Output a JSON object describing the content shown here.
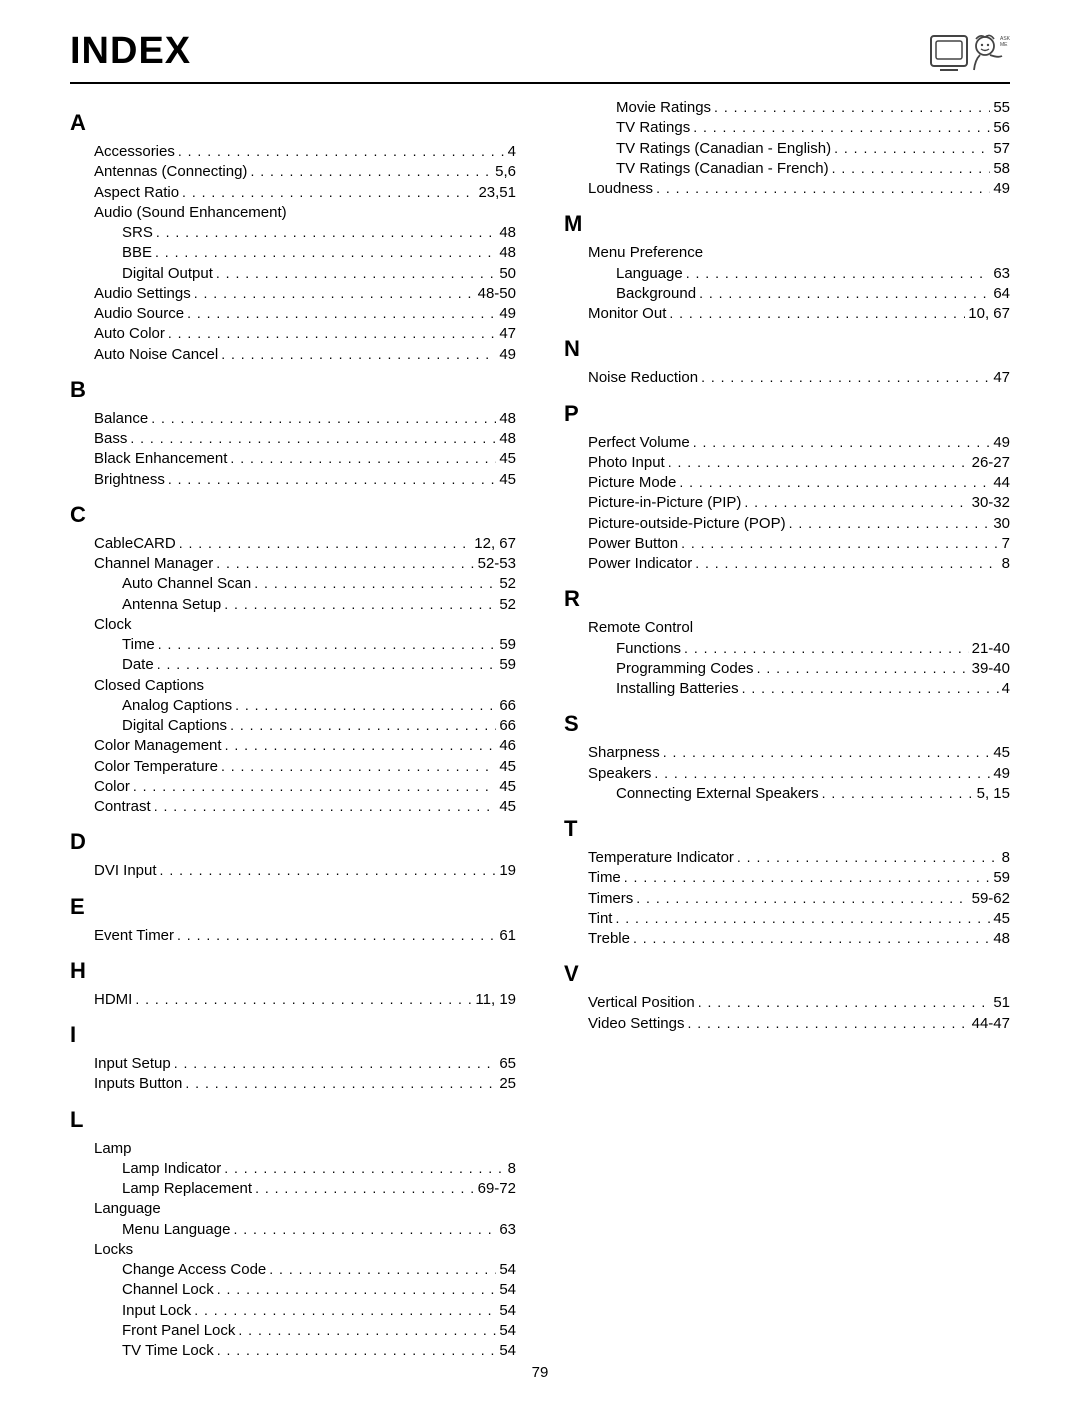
{
  "title": "Index",
  "logo_label": "ASK ME",
  "page_number": "79",
  "columns": [
    {
      "sections": [
        {
          "letter": "A",
          "entries": [
            {
              "label": "Accessories",
              "page": "4"
            },
            {
              "label": "Antennas (Connecting)",
              "page": "5,6"
            },
            {
              "label": "Aspect Ratio",
              "page": "23,51"
            },
            {
              "label": "Audio (Sound Enhancement)"
            },
            {
              "label": "SRS",
              "page": "48",
              "sub": true
            },
            {
              "label": "BBE",
              "page": "48",
              "sub": true
            },
            {
              "label": "Digital Output",
              "page": "50",
              "sub": true
            },
            {
              "label": "Audio Settings",
              "page": "48-50"
            },
            {
              "label": "Audio Source",
              "page": "49"
            },
            {
              "label": "Auto Color",
              "page": "47"
            },
            {
              "label": "Auto Noise Cancel",
              "page": "49"
            }
          ]
        },
        {
          "letter": "B",
          "entries": [
            {
              "label": "Balance",
              "page": "48"
            },
            {
              "label": "Bass",
              "page": "48"
            },
            {
              "label": "Black Enhancement",
              "page": "45"
            },
            {
              "label": "Brightness",
              "page": "45"
            }
          ]
        },
        {
          "letter": "C",
          "entries": [
            {
              "label": "CableCARD",
              "page": "12, 67"
            },
            {
              "label": "Channel Manager",
              "page": "52-53"
            },
            {
              "label": "Auto Channel Scan",
              "page": "52",
              "sub": true
            },
            {
              "label": "Antenna Setup",
              "page": "52",
              "sub": true
            },
            {
              "label": "Clock"
            },
            {
              "label": "Time",
              "page": "59",
              "sub": true
            },
            {
              "label": "Date",
              "page": "59",
              "sub": true
            },
            {
              "label": "Closed Captions"
            },
            {
              "label": "Analog Captions",
              "page": "66",
              "sub": true
            },
            {
              "label": "Digital Captions",
              "page": "66",
              "sub": true
            },
            {
              "label": "Color Management",
              "page": "46"
            },
            {
              "label": "Color Temperature",
              "page": "45"
            },
            {
              "label": "Color",
              "page": "45"
            },
            {
              "label": "Contrast",
              "page": "45"
            }
          ]
        },
        {
          "letter": "D",
          "entries": [
            {
              "label": "DVI Input",
              "page": "19"
            }
          ]
        },
        {
          "letter": "E",
          "entries": [
            {
              "label": "Event Timer",
              "page": "61"
            }
          ]
        },
        {
          "letter": "H",
          "entries": [
            {
              "label": "HDMI",
              "page": "11, 19"
            }
          ]
        },
        {
          "letter": "I",
          "entries": [
            {
              "label": "Input Setup",
              "page": "65"
            },
            {
              "label": "Inputs Button",
              "page": "25"
            }
          ]
        },
        {
          "letter": "L",
          "entries": [
            {
              "label": "Lamp"
            },
            {
              "label": "Lamp Indicator",
              "page": "8",
              "sub": true
            },
            {
              "label": "Lamp Replacement",
              "page": "69-72",
              "sub": true
            },
            {
              "label": "Language"
            },
            {
              "label": "Menu Language",
              "page": "63",
              "sub": true
            },
            {
              "label": "Locks"
            },
            {
              "label": "Change Access Code",
              "page": "54",
              "sub": true
            },
            {
              "label": "Channel Lock",
              "page": "54",
              "sub": true
            },
            {
              "label": "Input Lock",
              "page": "54",
              "sub": true
            },
            {
              "label": "Front Panel Lock",
              "page": "54",
              "sub": true
            },
            {
              "label": "TV Time Lock",
              "page": "54",
              "sub": true
            }
          ]
        }
      ]
    },
    {
      "sections": [
        {
          "letter": "",
          "entries": [
            {
              "label": "Movie Ratings",
              "page": "55",
              "sub": true
            },
            {
              "label": "TV Ratings",
              "page": "56",
              "sub": true
            },
            {
              "label": "TV Ratings (Canadian - English)",
              "page": "57",
              "sub": true
            },
            {
              "label": "TV Ratings (Canadian - French)",
              "page": "58",
              "sub": true
            },
            {
              "label": "Loudness",
              "page": "49"
            }
          ]
        },
        {
          "letter": "M",
          "entries": [
            {
              "label": "Menu Preference"
            },
            {
              "label": "Language",
              "page": "63",
              "sub": true
            },
            {
              "label": "Background",
              "page": "64",
              "sub": true
            },
            {
              "label": "Monitor Out",
              "page": "10, 67"
            }
          ]
        },
        {
          "letter": "N",
          "entries": [
            {
              "label": "Noise Reduction",
              "page": "47"
            }
          ]
        },
        {
          "letter": "P",
          "entries": [
            {
              "label": "Perfect Volume",
              "page": "49"
            },
            {
              "label": "Photo Input",
              "page": "26-27"
            },
            {
              "label": "Picture Mode",
              "page": "44"
            },
            {
              "label": "Picture-in-Picture (PIP)",
              "page": "30-32"
            },
            {
              "label": "Picture-outside-Picture (POP)",
              "page": "30"
            },
            {
              "label": "Power Button",
              "page": "7"
            },
            {
              "label": "Power Indicator",
              "page": "8"
            }
          ]
        },
        {
          "letter": "R",
          "entries": [
            {
              "label": "Remote Control"
            },
            {
              "label": "Functions",
              "page": "21-40",
              "sub": true
            },
            {
              "label": "Programming Codes",
              "page": "39-40",
              "sub": true
            },
            {
              "label": "Installing Batteries",
              "page": "4",
              "sub": true
            }
          ]
        },
        {
          "letter": "S",
          "entries": [
            {
              "label": "Sharpness",
              "page": "45"
            },
            {
              "label": "Speakers",
              "page": "49"
            },
            {
              "label": "Connecting External Speakers",
              "page": "5, 15",
              "sub": true
            }
          ]
        },
        {
          "letter": "T",
          "entries": [
            {
              "label": "Temperature Indicator",
              "page": "8"
            },
            {
              "label": "Time",
              "page": "59"
            },
            {
              "label": "Timers",
              "page": "59-62"
            },
            {
              "label": "Tint",
              "page": "45"
            },
            {
              "label": "Treble",
              "page": "48"
            }
          ]
        },
        {
          "letter": "V",
          "entries": [
            {
              "label": "Vertical Position",
              "page": "51"
            },
            {
              "label": "Video Settings",
              "page": "44-47"
            }
          ]
        }
      ]
    }
  ]
}
